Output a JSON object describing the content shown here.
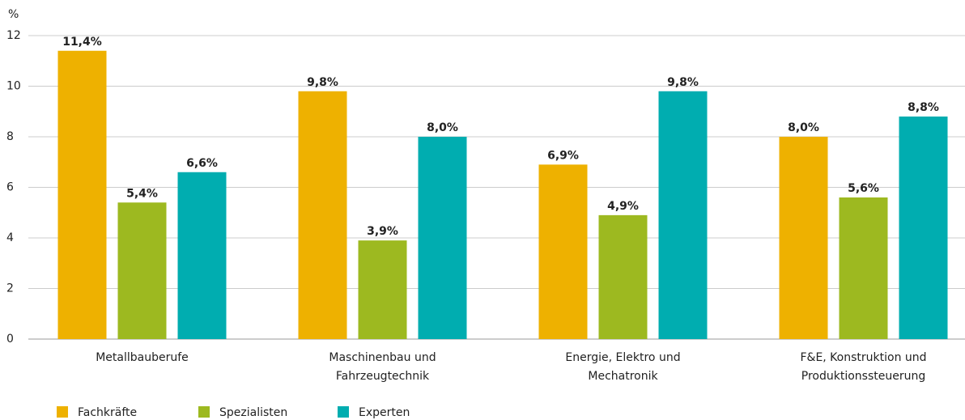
{
  "chart_data": {
    "type": "bar",
    "y_label": "%",
    "categories": [
      "Metallbauberufe",
      "Maschinenbau und\nFahrzeugtechnik",
      "Energie, Elektro und\nMechatronik",
      "F&E, Konstruktion und\nProduktionssteuerung"
    ],
    "series": [
      {
        "name": "Fachkräfte",
        "color": "#eeb100",
        "values": [
          11.4,
          9.8,
          6.9,
          8.0
        ],
        "value_labels": [
          "11,4%",
          "9,8%",
          "6,9%",
          "8,0%"
        ]
      },
      {
        "name": "Spezialisten",
        "color": "#9db920",
        "values": [
          5.4,
          3.9,
          4.9,
          5.6
        ],
        "value_labels": [
          "5,4%",
          "3,9%",
          "4,9%",
          "5,6%"
        ]
      },
      {
        "name": "Experten",
        "color": "#00adb0",
        "values": [
          6.6,
          8.0,
          9.8,
          8.8
        ],
        "value_labels": [
          "6,6%",
          "8,0%",
          "9,8%",
          "8,8%"
        ]
      }
    ],
    "ylim": [
      0,
      12
    ],
    "yticks": [
      0,
      2,
      4,
      6,
      8,
      10,
      12
    ],
    "grid": true,
    "legend": "bottom-left"
  }
}
